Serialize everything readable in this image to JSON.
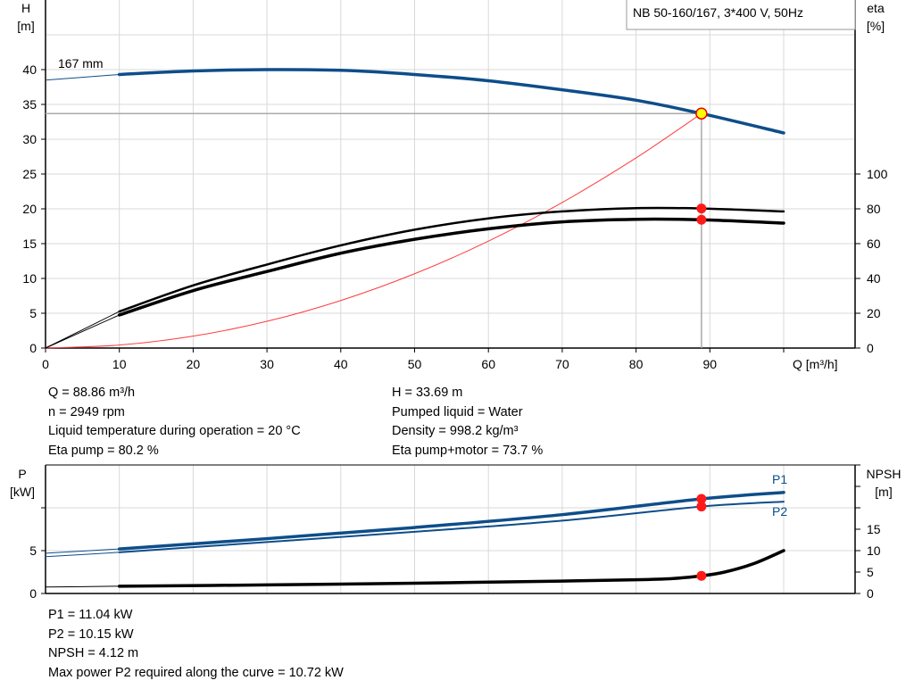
{
  "chart_data": [
    {
      "type": "line",
      "legend_title": "NB 50-160/167, 3*400 V, 50Hz",
      "xlabel": "Q [m³/h]",
      "ylabel_left": [
        "H",
        "[m]"
      ],
      "ylabel_right": [
        "eta",
        "[%]"
      ],
      "xlim": [
        0,
        110
      ],
      "ylim_left": [
        0,
        50
      ],
      "ylim_right": [
        0,
        200
      ],
      "x_ticks": [
        0,
        10,
        20,
        30,
        40,
        50,
        60,
        70,
        80,
        90
      ],
      "y_ticks_left": [
        0,
        5,
        10,
        15,
        20,
        25,
        30,
        35,
        40
      ],
      "y_ticks_right": [
        0,
        20,
        40,
        60,
        80,
        100
      ],
      "grid": true,
      "curve_label": "167 mm",
      "series": [
        {
          "key": "head",
          "axis": "left",
          "color": "#0e4d8a",
          "x": [
            0,
            10,
            20,
            30,
            40,
            50,
            60,
            70,
            80,
            88.86,
            100
          ],
          "y": [
            38.5,
            39.3,
            39.8,
            40.0,
            39.9,
            39.3,
            38.4,
            37.1,
            35.6,
            33.69,
            30.9
          ]
        },
        {
          "key": "eta_pump",
          "axis": "right",
          "color": "#000000",
          "x": [
            0,
            10,
            20,
            30,
            40,
            50,
            60,
            70,
            80,
            88.86,
            100
          ],
          "y": [
            0,
            21,
            36,
            48,
            59,
            68,
            74.5,
            78.5,
            80.4,
            80.2,
            78.5
          ]
        },
        {
          "key": "eta_pump_motor",
          "axis": "right",
          "color": "#000000",
          "x": [
            0,
            10,
            20,
            30,
            40,
            50,
            60,
            70,
            80,
            88.86,
            100
          ],
          "y": [
            0,
            19,
            33,
            44,
            54.5,
            62.5,
            68.5,
            72.5,
            74,
            73.7,
            71.8
          ]
        },
        {
          "key": "system",
          "axis": "left",
          "color": "#ff3b3b",
          "x": [
            0,
            10,
            20,
            30,
            40,
            50,
            60,
            70,
            80,
            88.86
          ],
          "y": [
            0,
            0.43,
            1.71,
            3.84,
            6.83,
            10.67,
            15.36,
            20.91,
            27.31,
            33.69
          ]
        }
      ],
      "duty_point": {
        "Q": 88.86,
        "H": 33.69,
        "eta_pump": 80.2,
        "eta_pump_motor": 73.7
      }
    },
    {
      "type": "line",
      "xlim": [
        0,
        110
      ],
      "ylabel_left": [
        "P",
        "[kW]"
      ],
      "ylabel_right": [
        "NPSH",
        "[m]"
      ],
      "ylim_left": [
        0,
        15
      ],
      "ylim_right": [
        0,
        30
      ],
      "y_ticks_left": [
        0,
        5
      ],
      "y_ticks_right": [
        0,
        5,
        10,
        15
      ],
      "grid": true,
      "series": [
        {
          "name": "P1",
          "axis": "left",
          "color": "#0e4d8a",
          "x": [
            0,
            10,
            30,
            50,
            70,
            88.86,
            100
          ],
          "y": [
            4.7,
            5.2,
            6.4,
            7.7,
            9.2,
            11.04,
            11.8
          ]
        },
        {
          "name": "P2",
          "axis": "left",
          "color": "#0e4d8a",
          "x": [
            0,
            10,
            30,
            50,
            70,
            88.86,
            100
          ],
          "y": [
            4.3,
            4.8,
            6.0,
            7.2,
            8.5,
            10.15,
            10.72
          ]
        },
        {
          "key": "npsh",
          "axis": "right",
          "color": "#000000",
          "x": [
            0,
            10,
            30,
            50,
            70,
            80,
            85,
            88.86,
            92,
            96,
            100
          ],
          "y": [
            1.5,
            1.7,
            2.0,
            2.4,
            2.9,
            3.2,
            3.5,
            4.12,
            5.0,
            7.0,
            10.0
          ]
        }
      ]
    }
  ],
  "info_left": [
    "Q = 88.86 m³/h",
    "n = 2949 rpm",
    "Liquid temperature during operation = 20 °C",
    "Eta pump = 80.2 %"
  ],
  "info_right": [
    "H = 33.69 m",
    "Pumped liquid = Water",
    "Density = 998.2 kg/m³",
    "Eta pump+motor = 73.7 %"
  ],
  "info_bottom": [
    "P1 = 11.04 kW",
    "P2 = 10.15 kW",
    "NPSH = 4.12 m",
    "Max power P2 required along the curve = 10.72 kW"
  ]
}
